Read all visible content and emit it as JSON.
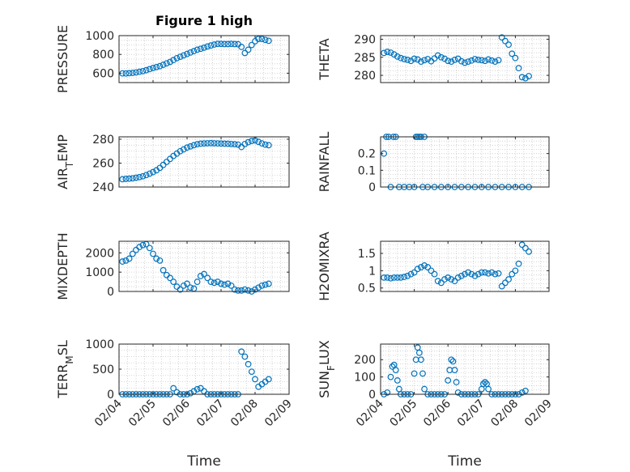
{
  "figure": {
    "title": "Figure 1 high",
    "marker_color": "#0072BD",
    "grid": true
  },
  "chart_data": [
    {
      "type": "scatter",
      "title": "Figure 1 high",
      "ylabel": "PRESSURE",
      "ylim": [
        500,
        1000
      ],
      "yticks": [
        600,
        800,
        1000
      ],
      "yticklabels": [
        "600",
        "800",
        "1000"
      ],
      "xlim": [
        0,
        5
      ],
      "xticks": [
        0,
        1,
        2,
        3,
        4,
        5
      ],
      "xticklabels": [
        "02/04",
        "02/05",
        "02/06",
        "02/07",
        "02/08",
        "02/09"
      ],
      "show_xticklabels": false,
      "xlabel": "",
      "x": [
        0.1,
        0.2,
        0.3,
        0.4,
        0.5,
        0.6,
        0.7,
        0.8,
        0.9,
        1.0,
        1.1,
        1.2,
        1.3,
        1.4,
        1.5,
        1.6,
        1.7,
        1.8,
        1.9,
        2.0,
        2.1,
        2.2,
        2.3,
        2.4,
        2.5,
        2.6,
        2.7,
        2.8,
        2.9,
        3.0,
        3.1,
        3.2,
        3.3,
        3.4,
        3.5,
        3.6,
        3.7,
        3.8,
        3.9,
        4.0,
        4.1,
        4.2,
        4.3,
        4.4
      ],
      "y": [
        598,
        597,
        600,
        603,
        608,
        615,
        622,
        632,
        643,
        655,
        665,
        675,
        690,
        705,
        720,
        740,
        760,
        775,
        790,
        805,
        820,
        835,
        850,
        860,
        872,
        885,
        895,
        905,
        912,
        912,
        910,
        910,
        912,
        910,
        908,
        880,
        815,
        850,
        900,
        940,
        965,
        965,
        955,
        945
      ]
    },
    {
      "type": "scatter",
      "title": "",
      "ylabel": "THETA",
      "ylim": [
        278,
        291
      ],
      "yticks": [
        280,
        285,
        290
      ],
      "yticklabels": [
        "280",
        "285",
        "290"
      ],
      "xlim": [
        0,
        5
      ],
      "xticks": [
        0,
        1,
        2,
        3,
        4,
        5
      ],
      "xticklabels": [
        "02/04",
        "02/05",
        "02/06",
        "02/07",
        "02/08",
        "02/09"
      ],
      "show_xticklabels": false,
      "xlabel": "",
      "x": [
        0.1,
        0.2,
        0.3,
        0.4,
        0.5,
        0.6,
        0.7,
        0.8,
        0.9,
        1.0,
        1.1,
        1.2,
        1.3,
        1.4,
        1.5,
        1.6,
        1.7,
        1.8,
        1.9,
        2.0,
        2.1,
        2.2,
        2.3,
        2.4,
        2.5,
        2.6,
        2.7,
        2.8,
        2.9,
        3.0,
        3.1,
        3.2,
        3.3,
        3.4,
        3.5,
        3.6,
        3.7,
        3.8,
        3.9,
        4.0,
        4.1,
        4.2,
        4.3,
        4.4
      ],
      "y": [
        286.2,
        286.5,
        286.3,
        285.8,
        285.2,
        284.8,
        284.5,
        284.3,
        284.0,
        284.6,
        284.4,
        283.8,
        284.2,
        284.5,
        283.9,
        284.7,
        285.5,
        285.0,
        284.6,
        284.0,
        283.8,
        284.3,
        284.6,
        283.9,
        283.5,
        283.8,
        284.1,
        284.5,
        284.3,
        284.2,
        284.0,
        284.4,
        284.1,
        283.8,
        284.2,
        290.5,
        289.5,
        288.5,
        286.0,
        284.8,
        282.0,
        279.5,
        279.2,
        279.8
      ]
    },
    {
      "type": "scatter",
      "title": "",
      "ylabel": "AIR_TEMP",
      "ylim": [
        240,
        282
      ],
      "yticks": [
        240,
        260,
        280
      ],
      "yticklabels": [
        "240",
        "260",
        "280"
      ],
      "xlim": [
        0,
        5
      ],
      "xticks": [
        0,
        1,
        2,
        3,
        4,
        5
      ],
      "xticklabels": [
        "02/04",
        "02/05",
        "02/06",
        "02/07",
        "02/08",
        "02/09"
      ],
      "show_xticklabels": false,
      "xlabel": "",
      "x": [
        0.1,
        0.2,
        0.3,
        0.4,
        0.5,
        0.6,
        0.7,
        0.8,
        0.9,
        1.0,
        1.1,
        1.2,
        1.3,
        1.4,
        1.5,
        1.6,
        1.7,
        1.8,
        1.9,
        2.0,
        2.1,
        2.2,
        2.3,
        2.4,
        2.5,
        2.6,
        2.7,
        2.8,
        2.9,
        3.0,
        3.1,
        3.2,
        3.3,
        3.4,
        3.5,
        3.6,
        3.7,
        3.8,
        3.9,
        4.0,
        4.1,
        4.2,
        4.3,
        4.4
      ],
      "y": [
        246.5,
        246.8,
        247.0,
        247.3,
        247.8,
        248.3,
        249.0,
        250.0,
        251.2,
        252.5,
        254.0,
        256.0,
        258.5,
        261.0,
        263.5,
        266.0,
        268.0,
        270.0,
        271.5,
        273.0,
        274.0,
        275.0,
        275.8,
        276.3,
        276.5,
        276.6,
        276.7,
        276.6,
        276.5,
        276.4,
        276.3,
        276.2,
        276.0,
        275.8,
        275.5,
        273.5,
        276.0,
        277.5,
        278.5,
        279.0,
        277.8,
        276.5,
        275.5,
        275.0
      ]
    },
    {
      "type": "scatter",
      "title": "",
      "ylabel": "RAINFALL",
      "ylim": [
        0,
        0.3
      ],
      "yticks": [
        0,
        0.1,
        0.2
      ],
      "yticklabels": [
        "0",
        "0.1",
        "0.2"
      ],
      "xlim": [
        0,
        5
      ],
      "xticks": [
        0,
        1,
        2,
        3,
        4,
        5
      ],
      "xticklabels": [
        "02/04",
        "02/05",
        "02/06",
        "02/07",
        "02/08",
        "02/09"
      ],
      "show_xticklabels": false,
      "xlabel": "",
      "x": [
        0.1,
        0.17,
        0.24,
        0.3,
        0.38,
        0.45,
        0.55,
        0.7,
        0.85,
        1.0,
        1.05,
        1.1,
        1.15,
        1.2,
        1.25,
        1.3,
        1.4,
        1.6,
        1.8,
        2.0,
        2.2,
        2.4,
        2.6,
        2.8,
        3.0,
        3.2,
        3.4,
        3.6,
        3.8,
        4.0,
        4.2,
        4.4
      ],
      "y": [
        0.2,
        0.3,
        0.3,
        0,
        0.3,
        0.3,
        0,
        0,
        0,
        0,
        0.3,
        0.3,
        0.3,
        0.3,
        0,
        0.3,
        0,
        0,
        0,
        0,
        0,
        0,
        0,
        0,
        0,
        0,
        0,
        0,
        0,
        0,
        0,
        0
      ]
    },
    {
      "type": "scatter",
      "title": "",
      "ylabel": "MIXDEPTH",
      "ylim": [
        0,
        2600
      ],
      "yticks": [
        0,
        1000,
        2000
      ],
      "yticklabels": [
        "0",
        "1000",
        "2000"
      ],
      "xlim": [
        0,
        5
      ],
      "xticks": [
        0,
        1,
        2,
        3,
        4,
        5
      ],
      "xticklabels": [
        "02/04",
        "02/05",
        "02/06",
        "02/07",
        "02/08",
        "02/09"
      ],
      "show_xticklabels": false,
      "xlabel": "",
      "x": [
        0.1,
        0.2,
        0.3,
        0.4,
        0.5,
        0.6,
        0.7,
        0.8,
        0.9,
        1.0,
        1.1,
        1.2,
        1.3,
        1.4,
        1.5,
        1.6,
        1.7,
        1.8,
        1.9,
        2.0,
        2.1,
        2.2,
        2.3,
        2.4,
        2.5,
        2.6,
        2.7,
        2.8,
        2.9,
        3.0,
        3.1,
        3.2,
        3.3,
        3.4,
        3.5,
        3.6,
        3.7,
        3.8,
        3.9,
        4.0,
        4.1,
        4.2,
        4.3,
        4.4
      ],
      "y": [
        1550,
        1600,
        1700,
        1950,
        2150,
        2300,
        2400,
        2450,
        2250,
        1950,
        1700,
        1600,
        1100,
        850,
        700,
        500,
        250,
        100,
        300,
        400,
        200,
        150,
        500,
        800,
        900,
        700,
        500,
        450,
        500,
        400,
        350,
        400,
        300,
        100,
        50,
        50,
        100,
        50,
        0,
        100,
        200,
        300,
        350,
        400
      ]
    },
    {
      "type": "scatter",
      "title": "",
      "ylabel": "H2OMIXRA",
      "ylim": [
        0.4,
        1.85
      ],
      "yticks": [
        0.5,
        1,
        1.5
      ],
      "yticklabels": [
        "0.5",
        "1",
        "1.5"
      ],
      "xlim": [
        0,
        5
      ],
      "xticks": [
        0,
        1,
        2,
        3,
        4,
        5
      ],
      "xticklabels": [
        "02/04",
        "02/05",
        "02/06",
        "02/07",
        "02/08",
        "02/09"
      ],
      "show_xticklabels": false,
      "xlabel": "",
      "x": [
        0.1,
        0.2,
        0.3,
        0.4,
        0.5,
        0.6,
        0.7,
        0.8,
        0.9,
        1.0,
        1.1,
        1.2,
        1.3,
        1.4,
        1.5,
        1.6,
        1.7,
        1.8,
        1.9,
        2.0,
        2.1,
        2.2,
        2.3,
        2.4,
        2.5,
        2.6,
        2.7,
        2.8,
        2.9,
        3.0,
        3.1,
        3.2,
        3.3,
        3.4,
        3.5,
        3.6,
        3.7,
        3.8,
        3.9,
        4.0,
        4.1,
        4.2,
        4.3,
        4.4
      ],
      "y": [
        0.8,
        0.8,
        0.78,
        0.8,
        0.8,
        0.8,
        0.82,
        0.85,
        0.9,
        0.95,
        1.05,
        1.1,
        1.15,
        1.1,
        1.0,
        0.9,
        0.7,
        0.65,
        0.75,
        0.8,
        0.75,
        0.7,
        0.8,
        0.85,
        0.9,
        0.95,
        0.9,
        0.85,
        0.9,
        0.95,
        0.95,
        0.92,
        0.95,
        0.9,
        0.92,
        0.55,
        0.65,
        0.75,
        0.9,
        1.0,
        1.2,
        1.75,
        1.65,
        1.55
      ]
    },
    {
      "type": "scatter",
      "title": "",
      "ylabel": "TERR_MSL",
      "ylim": [
        0,
        1000
      ],
      "yticks": [
        0,
        500,
        1000
      ],
      "yticklabels": [
        "0",
        "500",
        "1000"
      ],
      "xlim": [
        0,
        5
      ],
      "xticks": [
        0,
        1,
        2,
        3,
        4,
        5
      ],
      "xticklabels": [
        "02/04",
        "02/05",
        "02/06",
        "02/07",
        "02/08",
        "02/09"
      ],
      "show_xticklabels": true,
      "xlabel": "Time",
      "x": [
        0.1,
        0.2,
        0.3,
        0.4,
        0.5,
        0.6,
        0.7,
        0.8,
        0.9,
        1.0,
        1.1,
        1.2,
        1.3,
        1.4,
        1.5,
        1.6,
        1.7,
        1.8,
        1.9,
        2.0,
        2.1,
        2.2,
        2.3,
        2.4,
        2.5,
        2.6,
        2.7,
        2.8,
        2.9,
        3.0,
        3.1,
        3.2,
        3.3,
        3.4,
        3.5,
        3.6,
        3.7,
        3.8,
        3.9,
        4.0,
        4.1,
        4.2,
        4.3,
        4.4
      ],
      "y": [
        0,
        0,
        0,
        0,
        0,
        0,
        0,
        0,
        0,
        0,
        0,
        0,
        0,
        0,
        0,
        120,
        40,
        0,
        0,
        0,
        20,
        60,
        100,
        120,
        60,
        0,
        0,
        0,
        0,
        0,
        0,
        0,
        0,
        0,
        0,
        850,
        750,
        600,
        450,
        300,
        150,
        200,
        250,
        300
      ]
    },
    {
      "type": "scatter",
      "title": "",
      "ylabel": "SUN_FLUX",
      "ylim": [
        0,
        290
      ],
      "yticks": [
        0,
        100,
        200
      ],
      "yticklabels": [
        "0",
        "100",
        "200"
      ],
      "xlim": [
        0,
        5
      ],
      "xticks": [
        0,
        1,
        2,
        3,
        4,
        5
      ],
      "xticklabels": [
        "02/04",
        "02/05",
        "02/06",
        "02/07",
        "02/08",
        "02/09"
      ],
      "show_xticklabels": true,
      "xlabel": "Time",
      "x": [
        0.1,
        0.2,
        0.3,
        0.35,
        0.4,
        0.45,
        0.5,
        0.55,
        0.6,
        0.7,
        0.8,
        0.9,
        1.0,
        1.05,
        1.1,
        1.15,
        1.2,
        1.25,
        1.3,
        1.4,
        1.5,
        1.6,
        1.7,
        1.8,
        1.9,
        2.0,
        2.05,
        2.1,
        2.15,
        2.2,
        2.25,
        2.3,
        2.4,
        2.5,
        2.6,
        2.7,
        2.8,
        2.9,
        3.0,
        3.05,
        3.1,
        3.15,
        3.2,
        3.3,
        3.4,
        3.5,
        3.6,
        3.7,
        3.8,
        3.9,
        4.0,
        4.1,
        4.2,
        4.3
      ],
      "y": [
        0,
        10,
        100,
        160,
        170,
        140,
        80,
        30,
        0,
        0,
        0,
        0,
        120,
        200,
        270,
        240,
        200,
        120,
        30,
        0,
        0,
        0,
        0,
        0,
        0,
        80,
        140,
        200,
        190,
        140,
        70,
        10,
        0,
        0,
        0,
        0,
        0,
        0,
        30,
        60,
        70,
        60,
        30,
        0,
        0,
        0,
        0,
        0,
        0,
        0,
        0,
        0,
        10,
        20
      ]
    }
  ]
}
